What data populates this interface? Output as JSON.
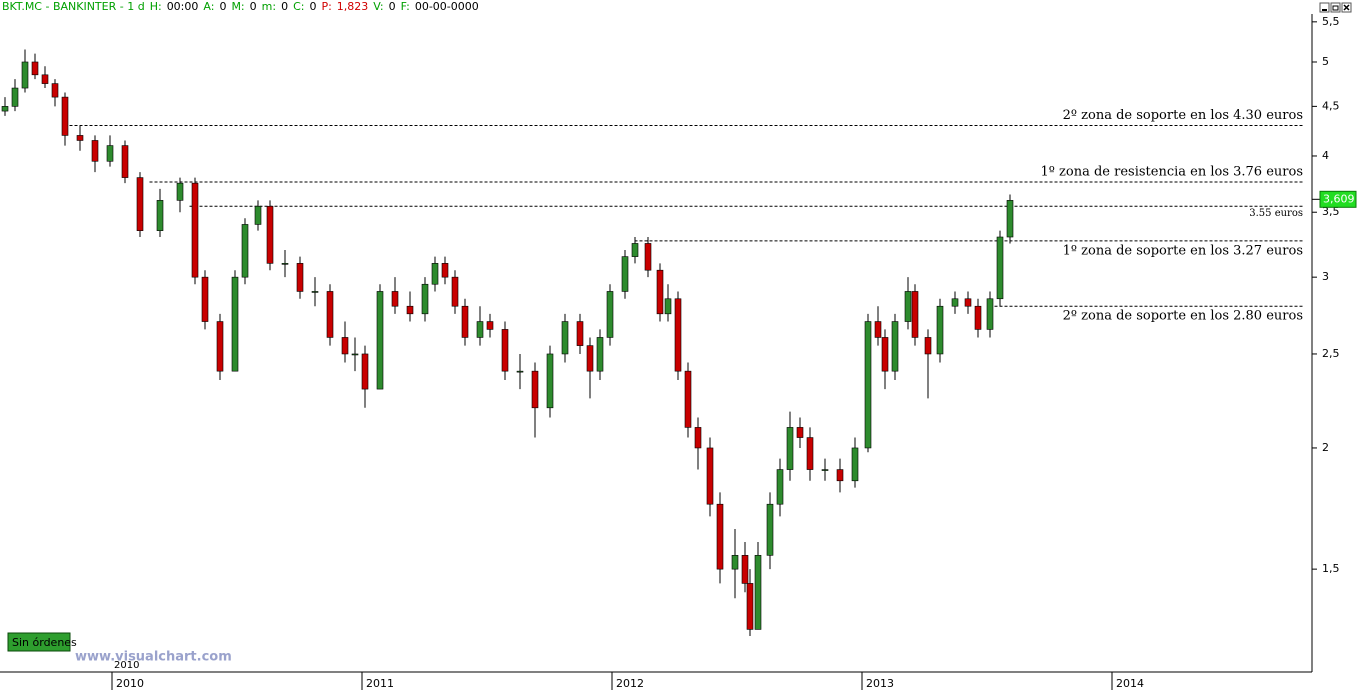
{
  "chart_data": {
    "type": "candlestick",
    "header": [
      {
        "text": "BKT.MC - BANKINTER - 1 d",
        "color": "#00a000"
      },
      {
        "text": "H:",
        "color": "#00a000"
      },
      {
        "text": "00:00",
        "color": "#000000"
      },
      {
        "text": "A:",
        "color": "#00a000"
      },
      {
        "text": "0",
        "color": "#000000"
      },
      {
        "text": "M:",
        "color": "#00a000"
      },
      {
        "text": "0",
        "color": "#000000"
      },
      {
        "text": "m:",
        "color": "#00a000"
      },
      {
        "text": "0",
        "color": "#000000"
      },
      {
        "text": "C:",
        "color": "#00a000"
      },
      {
        "text": "0",
        "color": "#000000"
      },
      {
        "text": "P:",
        "color": "#d00000"
      },
      {
        "text": "1,823",
        "color": "#d00000"
      },
      {
        "text": "V:",
        "color": "#00a000"
      },
      {
        "text": "0",
        "color": "#000000"
      },
      {
        "text": "F:",
        "color": "#00a000"
      },
      {
        "text": "00-00-0000",
        "color": "#000000"
      }
    ],
    "x": [
      2009.572,
      2009.612,
      2009.652,
      2009.692,
      2009.732,
      2009.772,
      2009.812,
      2009.872,
      2009.932,
      2009.992,
      2010.052,
      2010.112,
      2010.192,
      2010.272,
      2010.332,
      2010.372,
      2010.432,
      2010.492,
      2010.532,
      2010.584,
      2010.632,
      2010.692,
      2010.752,
      2010.812,
      2010.872,
      2010.932,
      2010.972,
      2011.012,
      2011.072,
      2011.132,
      2011.192,
      2011.252,
      2011.292,
      2011.332,
      2011.372,
      2011.412,
      2011.472,
      2011.512,
      2011.572,
      2011.632,
      2011.692,
      2011.752,
      2011.812,
      2011.872,
      2011.912,
      2011.952,
      2011.992,
      2012.052,
      2012.092,
      2012.144,
      2012.192,
      2012.224,
      2012.264,
      2012.304,
      2012.344,
      2012.392,
      2012.432,
      2012.492,
      2012.532,
      2012.552,
      2012.584,
      2012.632,
      2012.672,
      2012.712,
      2012.752,
      2012.792,
      2012.852,
      2012.912,
      2012.972,
      2013.024,
      2013.064,
      2013.092,
      2013.132,
      2013.184,
      2013.212,
      2013.264,
      2013.312,
      2013.372,
      2013.424,
      2013.464,
      2013.512,
      2013.552,
      2013.592
    ],
    "ohlc": [
      [
        4.45,
        4.6,
        4.4,
        4.5
      ],
      [
        4.5,
        4.8,
        4.45,
        4.7
      ],
      [
        4.7,
        5.15,
        4.65,
        5.0
      ],
      [
        5.0,
        5.1,
        4.8,
        4.85
      ],
      [
        4.85,
        4.95,
        4.7,
        4.75
      ],
      [
        4.75,
        4.8,
        4.5,
        4.6
      ],
      [
        4.6,
        4.65,
        4.1,
        4.2
      ],
      [
        4.2,
        4.3,
        4.05,
        4.15
      ],
      [
        4.15,
        4.2,
        3.85,
        3.95
      ],
      [
        3.95,
        4.2,
        3.9,
        4.1
      ],
      [
        4.1,
        4.15,
        3.75,
        3.8
      ],
      [
        3.8,
        3.85,
        3.3,
        3.35
      ],
      [
        3.35,
        3.7,
        3.3,
        3.6
      ],
      [
        3.6,
        3.8,
        3.5,
        3.75
      ],
      [
        3.75,
        3.8,
        2.95,
        3.0
      ],
      [
        3.0,
        3.05,
        2.65,
        2.7
      ],
      [
        2.7,
        2.75,
        2.35,
        2.4
      ],
      [
        2.4,
        3.05,
        2.4,
        3.0
      ],
      [
        3.0,
        3.45,
        2.95,
        3.4
      ],
      [
        3.4,
        3.6,
        3.35,
        3.55
      ],
      [
        3.55,
        3.6,
        3.05,
        3.1
      ],
      [
        3.1,
        3.2,
        3.0,
        3.1
      ],
      [
        3.1,
        3.15,
        2.85,
        2.9
      ],
      [
        2.9,
        3.0,
        2.8,
        2.9
      ],
      [
        2.9,
        2.95,
        2.55,
        2.6
      ],
      [
        2.6,
        2.7,
        2.45,
        2.5
      ],
      [
        2.5,
        2.6,
        2.4,
        2.5
      ],
      [
        2.5,
        2.55,
        2.2,
        2.3
      ],
      [
        2.3,
        2.95,
        2.3,
        2.9
      ],
      [
        2.9,
        3.0,
        2.75,
        2.8
      ],
      [
        2.8,
        2.9,
        2.7,
        2.75
      ],
      [
        2.75,
        3.0,
        2.7,
        2.95
      ],
      [
        2.95,
        3.15,
        2.9,
        3.1
      ],
      [
        3.1,
        3.15,
        2.95,
        3.0
      ],
      [
        3.0,
        3.05,
        2.75,
        2.8
      ],
      [
        2.8,
        2.85,
        2.55,
        2.6
      ],
      [
        2.6,
        2.8,
        2.55,
        2.7
      ],
      [
        2.7,
        2.75,
        2.6,
        2.65
      ],
      [
        2.65,
        2.7,
        2.35,
        2.4
      ],
      [
        2.4,
        2.5,
        2.3,
        2.4
      ],
      [
        2.4,
        2.45,
        2.05,
        2.2
      ],
      [
        2.2,
        2.55,
        2.15,
        2.5
      ],
      [
        2.5,
        2.75,
        2.45,
        2.7
      ],
      [
        2.7,
        2.75,
        2.5,
        2.55
      ],
      [
        2.55,
        2.6,
        2.25,
        2.4
      ],
      [
        2.4,
        2.65,
        2.35,
        2.6
      ],
      [
        2.6,
        2.95,
        2.55,
        2.9
      ],
      [
        2.9,
        3.2,
        2.85,
        3.15
      ],
      [
        3.15,
        3.3,
        3.1,
        3.25
      ],
      [
        3.25,
        3.3,
        3.0,
        3.05
      ],
      [
        3.05,
        3.1,
        2.7,
        2.75
      ],
      [
        2.75,
        2.95,
        2.7,
        2.85
      ],
      [
        2.85,
        2.9,
        2.35,
        2.4
      ],
      [
        2.4,
        2.45,
        2.05,
        2.1
      ],
      [
        2.1,
        2.15,
        1.9,
        2.0
      ],
      [
        2.0,
        2.05,
        1.7,
        1.75
      ],
      [
        1.75,
        1.8,
        1.45,
        1.5
      ],
      [
        1.5,
        1.65,
        1.4,
        1.55
      ],
      [
        1.55,
        1.6,
        1.42,
        1.45
      ],
      [
        1.45,
        1.5,
        1.28,
        1.3
      ],
      [
        1.3,
        1.6,
        1.3,
        1.55
      ],
      [
        1.55,
        1.8,
        1.5,
        1.75
      ],
      [
        1.75,
        1.95,
        1.7,
        1.9
      ],
      [
        1.9,
        2.18,
        1.85,
        2.1
      ],
      [
        2.1,
        2.15,
        2.0,
        2.05
      ],
      [
        2.05,
        2.1,
        1.85,
        1.9
      ],
      [
        1.9,
        1.95,
        1.85,
        1.9
      ],
      [
        1.9,
        1.95,
        1.8,
        1.85
      ],
      [
        1.85,
        2.05,
        1.82,
        2.0
      ],
      [
        2.0,
        2.75,
        1.98,
        2.7
      ],
      [
        2.7,
        2.8,
        2.55,
        2.6
      ],
      [
        2.6,
        2.65,
        2.3,
        2.4
      ],
      [
        2.4,
        2.75,
        2.35,
        2.7
      ],
      [
        2.7,
        3.0,
        2.65,
        2.9
      ],
      [
        2.9,
        2.95,
        2.55,
        2.6
      ],
      [
        2.6,
        2.65,
        2.25,
        2.5
      ],
      [
        2.5,
        2.85,
        2.45,
        2.8
      ],
      [
        2.8,
        2.9,
        2.75,
        2.85
      ],
      [
        2.85,
        2.9,
        2.75,
        2.8
      ],
      [
        2.8,
        2.85,
        2.6,
        2.65
      ],
      [
        2.65,
        2.9,
        2.6,
        2.85
      ],
      [
        2.85,
        3.35,
        2.8,
        3.3
      ],
      [
        3.3,
        3.65,
        3.25,
        3.6
      ]
    ],
    "up_color": "#2e8b2e",
    "down_color": "#c80000",
    "xlim": [
      2009.552,
      2014.752
    ],
    "xticks": [
      2010,
      2011,
      2012,
      2013,
      2014
    ],
    "ylim": [
      1.175,
      5.59
    ],
    "yticks": [
      {
        "value": 1.5,
        "label": "1,5"
      },
      2,
      {
        "value": 2.5,
        "label": "2,5"
      },
      3,
      {
        "value": 3.5,
        "label": "3,5"
      },
      4,
      {
        "value": 4.5,
        "label": "4,5"
      },
      5,
      {
        "value": 5.5,
        "label": "5,5"
      }
    ],
    "log_scale": true,
    "levels": [
      {
        "value": 4.3,
        "start": 2009.81,
        "label": "2º zona de soporte en los 4.30 euros",
        "label_position": "above"
      },
      {
        "value": 3.76,
        "start": 2010.15,
        "label": "1º zona de resistencia en los 3.76 euros",
        "label_position": "above"
      },
      {
        "value": 3.55,
        "start": 2010.31,
        "label": "3.55 euros",
        "label_position": "below"
      },
      {
        "value": 3.27,
        "start": 2012.09,
        "label": "1º zona de soporte en los 3.27 euros",
        "label_position": "below"
      },
      {
        "value": 2.8,
        "start": 2013.51,
        "label": "2º zona de soporte en los 2.80 euros",
        "label_position": "below"
      }
    ],
    "last_price": {
      "value": 3.609,
      "label": "3,609"
    },
    "period_label": "2010",
    "orders_button": "Sin órdenes",
    "watermark": "www.visualchart.com"
  }
}
